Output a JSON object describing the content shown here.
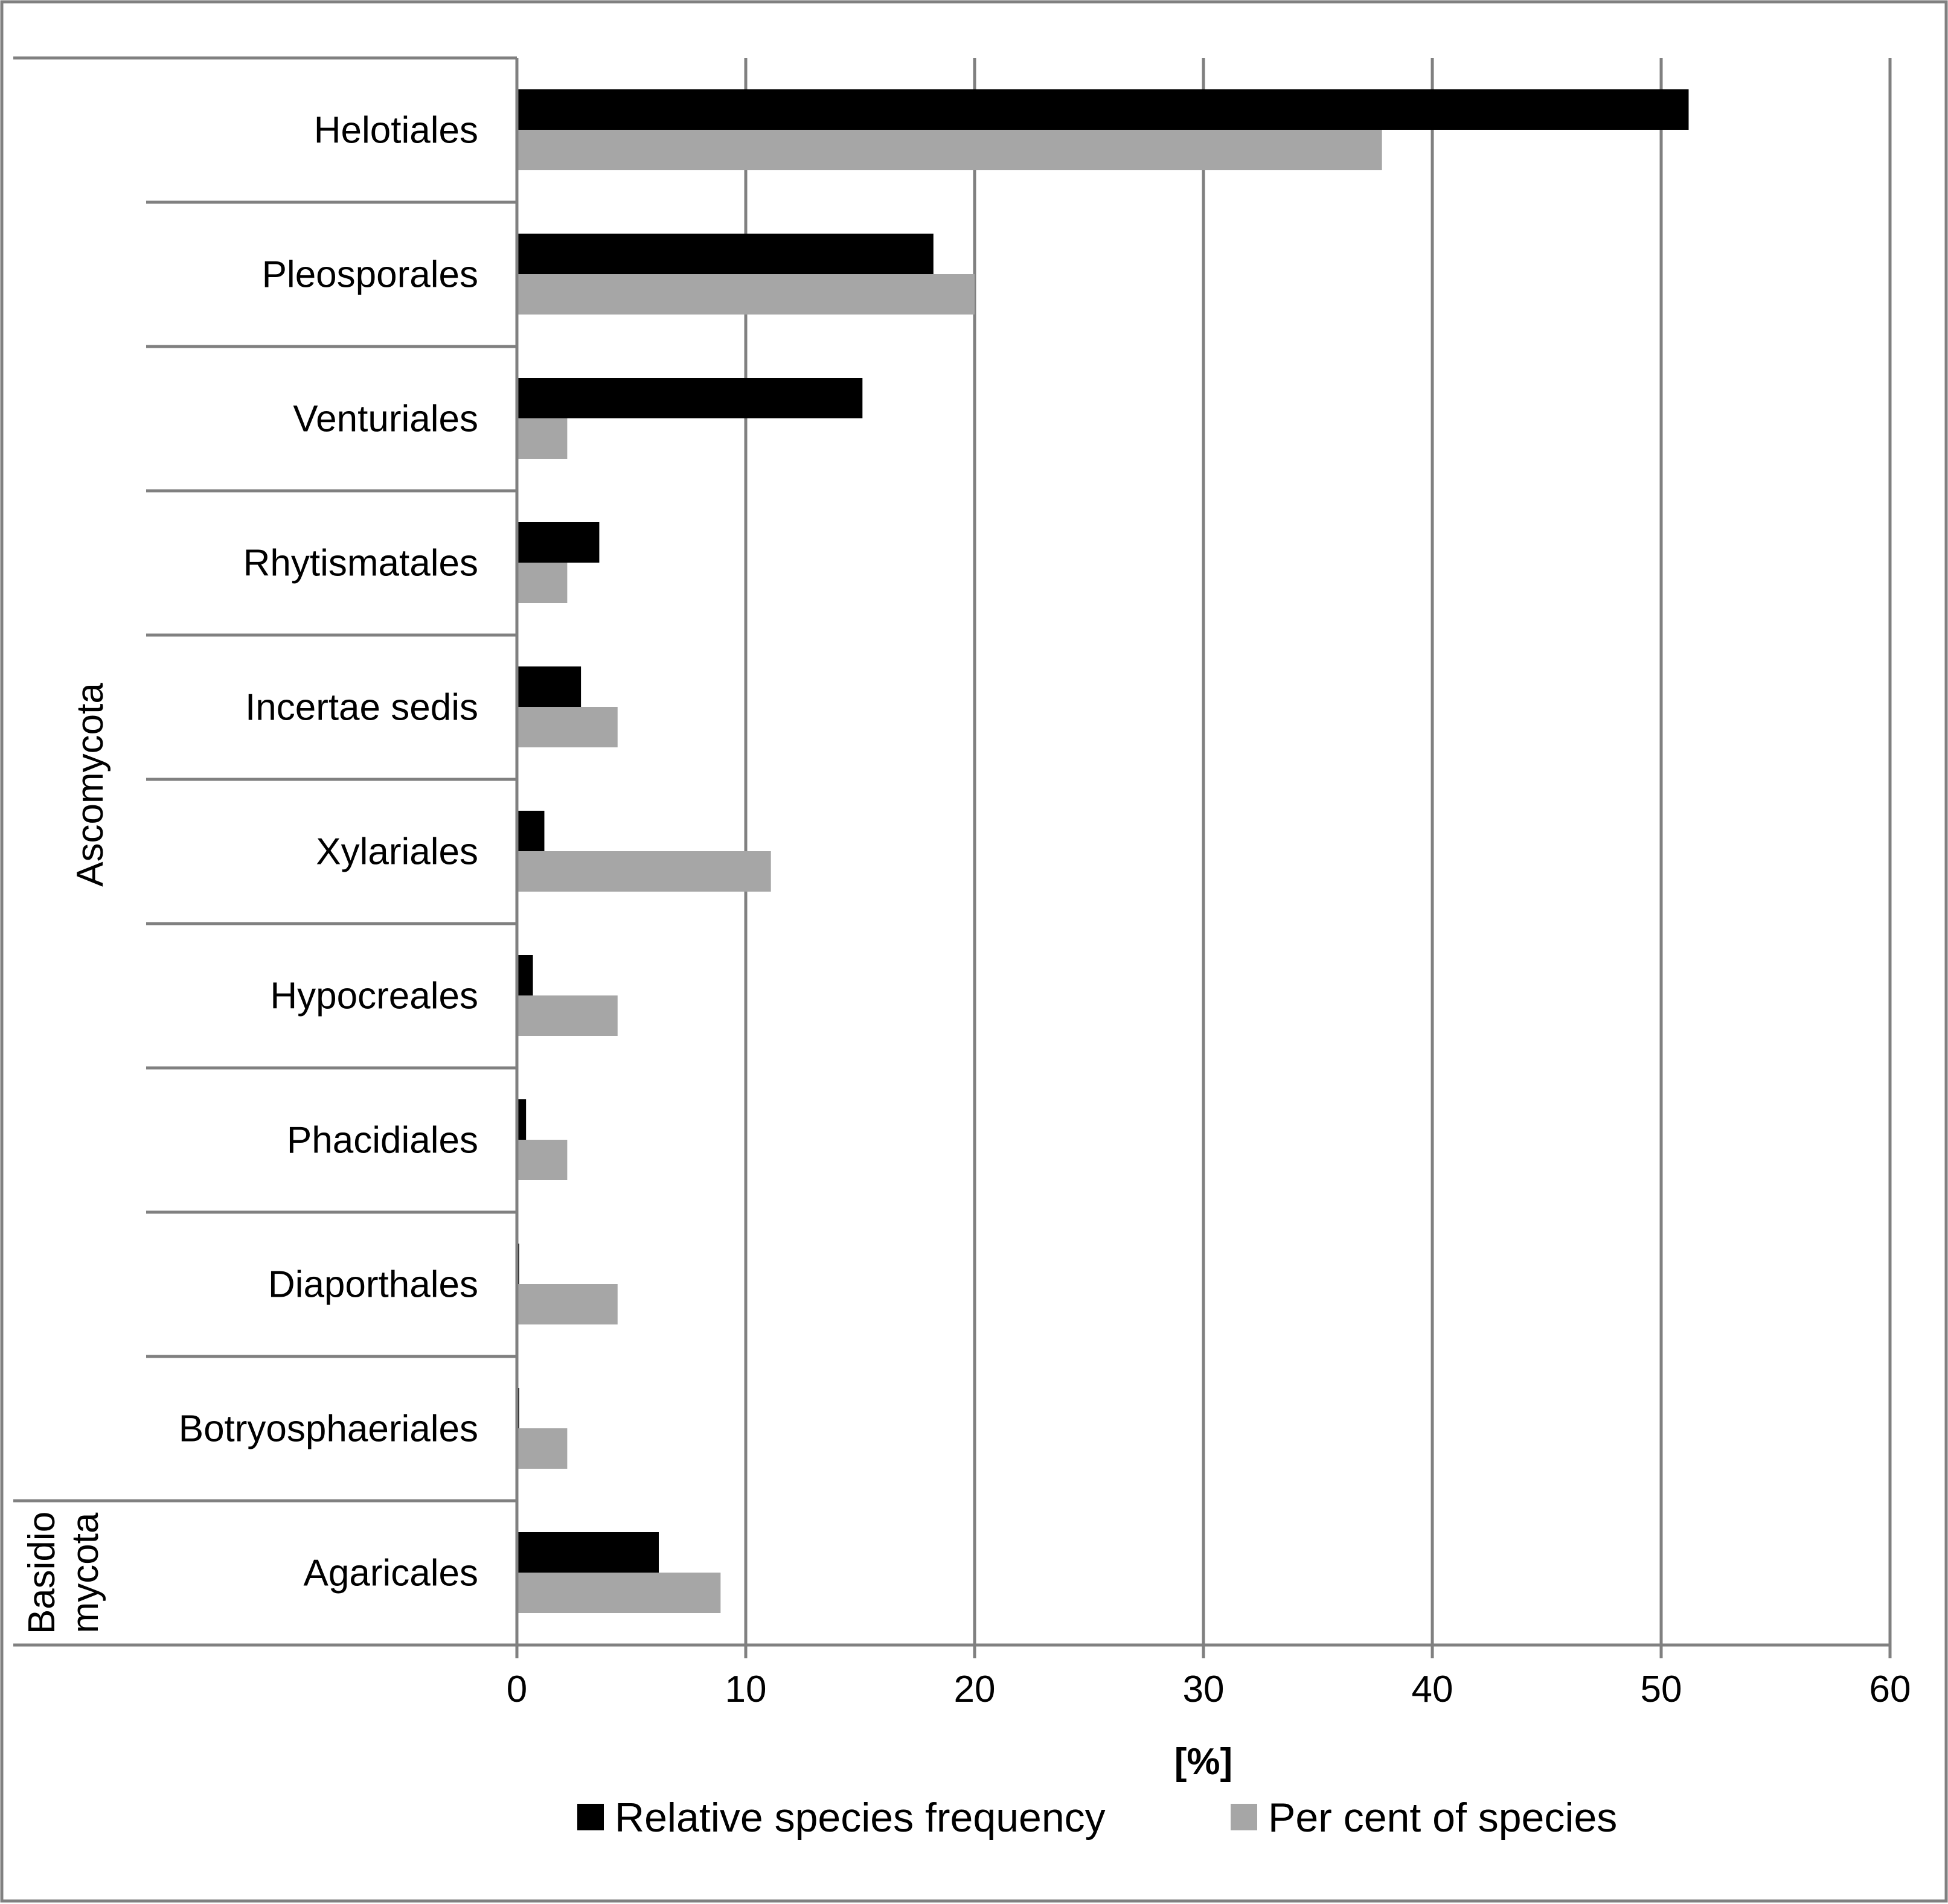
{
  "chart_data": {
    "type": "bar",
    "orientation": "horizontal",
    "categories": [
      "Helotiales",
      "Pleosporales",
      "Venturiales",
      "Rhytismatales",
      "Incertae sedis",
      "Xylariales",
      "Hypocreales",
      "Phacidiales",
      "Diaporthales",
      "Botryosphaeriales",
      "Agaricales"
    ],
    "groups": [
      {
        "name": "Ascomycota",
        "categories": [
          "Helotiales",
          "Pleosporales",
          "Venturiales",
          "Rhytismatales",
          "Incertae sedis",
          "Xylariales",
          "Hypocreales",
          "Phacidiales",
          "Diaporthales",
          "Botryosphaeriales"
        ]
      },
      {
        "name": "Basidio\nmycota",
        "lines": [
          "Basidio",
          "mycota"
        ],
        "categories": [
          "Agaricales"
        ]
      }
    ],
    "series": [
      {
        "name": "Relative species frequency",
        "color": "#000000",
        "values": [
          51.2,
          18.2,
          15.1,
          3.6,
          2.8,
          1.2,
          0.7,
          0.4,
          0.1,
          0.1,
          6.2
        ]
      },
      {
        "name": "Per cent of species",
        "color": "#a6a6a6",
        "values": [
          37.8,
          20.0,
          2.2,
          2.2,
          4.4,
          11.1,
          4.4,
          2.2,
          4.4,
          2.2,
          8.9
        ]
      }
    ],
    "xlabel": "[%]",
    "ylabel": "",
    "xlim": [
      0,
      60
    ],
    "xticks": [
      0,
      10,
      20,
      30,
      40,
      50,
      60
    ],
    "grid": true,
    "legend_position": "bottom-center"
  }
}
